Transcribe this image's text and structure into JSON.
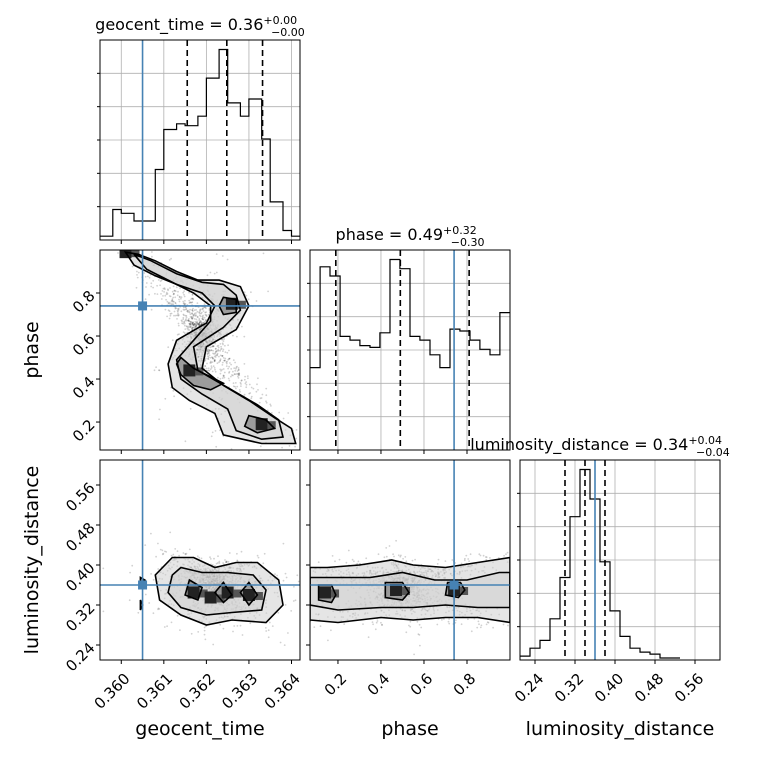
{
  "chart_data": {
    "type": "corner",
    "parameters": [
      "geocent_time",
      "phase",
      "luminosity_distance"
    ],
    "truths": {
      "geocent_time": 0.3605,
      "phase": 0.74,
      "luminosity_distance": 0.36
    },
    "ranges": {
      "geocent_time": [
        0.3595,
        0.3642
      ],
      "phase": [
        0.07,
        1.0
      ],
      "luminosity_distance": [
        0.21,
        0.61
      ]
    },
    "ticks": {
      "geocent_time": [
        0.36,
        0.361,
        0.362,
        0.363,
        0.364
      ],
      "phase": [
        0.2,
        0.4,
        0.6,
        0.8
      ],
      "luminosity_distance": [
        0.24,
        0.32,
        0.4,
        0.48,
        0.56
      ]
    },
    "tick_labels": {
      "geocent_time": [
        "0.360",
        "0.361",
        "0.362",
        "0.363",
        "0.364"
      ],
      "phase": [
        "0.2",
        "0.4",
        "0.6",
        "0.8"
      ],
      "luminosity_distance": [
        "0.24",
        "0.32",
        "0.40",
        "0.48",
        "0.56"
      ]
    },
    "titles": [
      {
        "name": "geocent_time",
        "text": "geocent_time = 0.36",
        "sup": "+0.00",
        "sub": "−0.00"
      },
      {
        "name": "phase",
        "text": "phase = 0.49",
        "sup": "+0.32",
        "sub": "−0.30"
      },
      {
        "name": "luminosity_distance",
        "text": "luminosity_distance = 0.34",
        "sup": "+0.04",
        "sub": "−0.04"
      }
    ],
    "histograms": {
      "geocent_time": {
        "edges": [
          0.3595,
          0.3598,
          0.36,
          0.3603,
          0.3605,
          0.3608,
          0.361,
          0.3613,
          0.3615,
          0.3618,
          0.362,
          0.3623,
          0.3625,
          0.3628,
          0.363,
          0.3633,
          0.3635,
          0.3638,
          0.364,
          0.3642
        ],
        "counts": [
          0.02,
          0.16,
          0.14,
          0.1,
          0.1,
          0.37,
          0.58,
          0.61,
          0.6,
          0.65,
          0.85,
          1.0,
          0.72,
          0.65,
          0.74,
          0.53,
          0.2,
          0.05,
          0.02
        ],
        "quantiles": [
          0.36155,
          0.36248,
          0.36332
        ]
      },
      "phase": {
        "edges": [
          0.07,
          0.117,
          0.163,
          0.21,
          0.256,
          0.302,
          0.349,
          0.395,
          0.442,
          0.488,
          0.535,
          0.581,
          0.628,
          0.674,
          0.721,
          0.767,
          0.814,
          0.86,
          0.907,
          0.953,
          1.0
        ],
        "counts": [
          0.45,
          1.0,
          0.95,
          0.62,
          0.6,
          0.57,
          0.56,
          0.64,
          1.04,
          0.99,
          0.62,
          0.6,
          0.52,
          0.45,
          0.66,
          0.65,
          0.6,
          0.55,
          0.52,
          0.75
        ],
        "quantiles": [
          0.19,
          0.49,
          0.81
        ]
      },
      "luminosity_distance": {
        "edges": [
          0.21,
          0.23,
          0.25,
          0.27,
          0.29,
          0.31,
          0.33,
          0.35,
          0.37,
          0.39,
          0.41,
          0.43,
          0.45,
          0.47,
          0.49,
          0.51,
          0.53
        ],
        "counts": [
          0.02,
          0.06,
          0.1,
          0.21,
          0.42,
          0.73,
          0.97,
          0.82,
          0.5,
          0.25,
          0.12,
          0.06,
          0.04,
          0.03,
          0.01,
          0.01
        ],
        "quantiles": [
          0.3,
          0.34,
          0.38
        ]
      }
    },
    "contours_2d": [
      {
        "x": "geocent_time",
        "y": "phase",
        "levels": [
          [
            [
              0.3601,
              0.99
            ],
            [
              0.3604,
              0.98
            ],
            [
              0.3608,
              0.95
            ],
            [
              0.3613,
              0.9
            ],
            [
              0.3618,
              0.86
            ],
            [
              0.3623,
              0.86
            ],
            [
              0.3628,
              0.83
            ],
            [
              0.363,
              0.74
            ],
            [
              0.3627,
              0.63
            ],
            [
              0.362,
              0.55
            ],
            [
              0.3619,
              0.45
            ],
            [
              0.3624,
              0.37
            ],
            [
              0.363,
              0.3
            ],
            [
              0.3636,
              0.22
            ],
            [
              0.364,
              0.17
            ],
            [
              0.3641,
              0.1
            ],
            [
              0.3633,
              0.1
            ],
            [
              0.3624,
              0.14
            ],
            [
              0.3622,
              0.24
            ],
            [
              0.3616,
              0.3
            ],
            [
              0.3612,
              0.36
            ],
            [
              0.3611,
              0.47
            ],
            [
              0.3613,
              0.58
            ],
            [
              0.362,
              0.66
            ],
            [
              0.3622,
              0.74
            ],
            [
              0.3619,
              0.8
            ],
            [
              0.3613,
              0.84
            ],
            [
              0.3608,
              0.88
            ],
            [
              0.3603,
              0.93
            ],
            [
              0.3601,
              0.99
            ]
          ],
          [
            [
              0.3603,
              0.98
            ],
            [
              0.3607,
              0.95
            ],
            [
              0.3613,
              0.89
            ],
            [
              0.3619,
              0.85
            ],
            [
              0.3624,
              0.84
            ],
            [
              0.3627,
              0.79
            ],
            [
              0.3628,
              0.72
            ],
            [
              0.3624,
              0.64
            ],
            [
              0.3617,
              0.55
            ],
            [
              0.3618,
              0.44
            ],
            [
              0.3625,
              0.36
            ],
            [
              0.3632,
              0.28
            ],
            [
              0.3637,
              0.21
            ],
            [
              0.3638,
              0.13
            ],
            [
              0.3633,
              0.12
            ],
            [
              0.3627,
              0.16
            ],
            [
              0.3625,
              0.26
            ],
            [
              0.3619,
              0.33
            ],
            [
              0.3614,
              0.4
            ],
            [
              0.3613,
              0.49
            ],
            [
              0.3617,
              0.58
            ],
            [
              0.3621,
              0.67
            ],
            [
              0.3621,
              0.74
            ],
            [
              0.3617,
              0.8
            ],
            [
              0.3611,
              0.86
            ],
            [
              0.3606,
              0.91
            ],
            [
              0.3603,
              0.98
            ]
          ],
          [
            [
              0.3614,
              0.5
            ],
            [
              0.3617,
              0.45
            ],
            [
              0.3621,
              0.41
            ],
            [
              0.3624,
              0.38
            ],
            [
              0.3621,
              0.35
            ],
            [
              0.3617,
              0.37
            ],
            [
              0.3614,
              0.42
            ],
            [
              0.3613,
              0.47
            ],
            [
              0.3614,
              0.5
            ]
          ],
          [
            [
              0.3624,
              0.78
            ],
            [
              0.3627,
              0.77
            ],
            [
              0.3627,
              0.71
            ],
            [
              0.3624,
              0.7
            ],
            [
              0.3623,
              0.74
            ],
            [
              0.3624,
              0.78
            ]
          ],
          [
            [
              0.363,
              0.23
            ],
            [
              0.3634,
              0.21
            ],
            [
              0.3636,
              0.17
            ],
            [
              0.3632,
              0.15
            ],
            [
              0.3629,
              0.18
            ],
            [
              0.363,
              0.23
            ]
          ]
        ],
        "dense_points": [
          [
            0.3616,
            0.44
          ],
          [
            0.3626,
            0.75
          ],
          [
            0.3633,
            0.19
          ],
          [
            0.3601,
            0.99
          ]
        ]
      },
      {
        "x": "geocent_time",
        "y": "luminosity_distance",
        "levels": [
          [
            [
              0.3612,
              0.415
            ],
            [
              0.3617,
              0.415
            ],
            [
              0.3622,
              0.395
            ],
            [
              0.3627,
              0.405
            ],
            [
              0.3632,
              0.405
            ],
            [
              0.3637,
              0.37
            ],
            [
              0.3638,
              0.32
            ],
            [
              0.3634,
              0.285
            ],
            [
              0.3626,
              0.29
            ],
            [
              0.362,
              0.28
            ],
            [
              0.3614,
              0.3
            ],
            [
              0.3609,
              0.33
            ],
            [
              0.3608,
              0.38
            ],
            [
              0.3612,
              0.415
            ]
          ],
          [
            [
              0.3614,
              0.395
            ],
            [
              0.3619,
              0.385
            ],
            [
              0.3625,
              0.385
            ],
            [
              0.3631,
              0.38
            ],
            [
              0.3634,
              0.35
            ],
            [
              0.3633,
              0.31
            ],
            [
              0.3626,
              0.305
            ],
            [
              0.362,
              0.3
            ],
            [
              0.3614,
              0.315
            ],
            [
              0.3611,
              0.345
            ],
            [
              0.3612,
              0.38
            ],
            [
              0.3614,
              0.395
            ]
          ],
          [
            [
              0.3616,
              0.37
            ],
            [
              0.3619,
              0.355
            ],
            [
              0.3618,
              0.33
            ],
            [
              0.3615,
              0.34
            ],
            [
              0.3616,
              0.37
            ]
          ],
          [
            [
              0.3624,
              0.365
            ],
            [
              0.3626,
              0.34
            ],
            [
              0.3624,
              0.325
            ],
            [
              0.3622,
              0.345
            ],
            [
              0.3624,
              0.365
            ]
          ],
          [
            [
              0.363,
              0.365
            ],
            [
              0.3632,
              0.34
            ],
            [
              0.363,
              0.32
            ],
            [
              0.3628,
              0.345
            ],
            [
              0.363,
              0.365
            ]
          ],
          [
            [
              0.36045,
              0.375
            ],
            [
              0.36055,
              0.37
            ],
            [
              0.36045,
              0.365
            ],
            [
              0.36045,
              0.375
            ]
          ],
          [
            [
              0.36045,
              0.33
            ],
            [
              0.3605,
              0.32
            ],
            [
              0.36045,
              0.31
            ],
            [
              0.36045,
              0.33
            ]
          ]
        ],
        "dense_points": [
          [
            0.3617,
            0.345
          ],
          [
            0.3621,
            0.335
          ],
          [
            0.3625,
            0.345
          ],
          [
            0.363,
            0.34
          ]
        ]
      },
      {
        "x": "phase",
        "y": "luminosity_distance",
        "levels": [
          [
            [
              0.07,
              0.395
            ],
            [
              0.15,
              0.395
            ],
            [
              0.3,
              0.4
            ],
            [
              0.45,
              0.41
            ],
            [
              0.55,
              0.4
            ],
            [
              0.7,
              0.395
            ],
            [
              0.85,
              0.405
            ],
            [
              1.0,
              0.415
            ],
            [
              1.0,
              0.285
            ],
            [
              0.85,
              0.295
            ],
            [
              0.7,
              0.295
            ],
            [
              0.55,
              0.29
            ],
            [
              0.4,
              0.295
            ],
            [
              0.2,
              0.285
            ],
            [
              0.07,
              0.29
            ],
            [
              0.07,
              0.395
            ]
          ],
          [
            [
              0.07,
              0.375
            ],
            [
              0.2,
              0.375
            ],
            [
              0.35,
              0.375
            ],
            [
              0.5,
              0.385
            ],
            [
              0.65,
              0.37
            ],
            [
              0.8,
              0.37
            ],
            [
              0.95,
              0.385
            ],
            [
              1.0,
              0.385
            ],
            [
              1.0,
              0.315
            ],
            [
              0.85,
              0.315
            ],
            [
              0.7,
              0.32
            ],
            [
              0.55,
              0.315
            ],
            [
              0.4,
              0.315
            ],
            [
              0.2,
              0.31
            ],
            [
              0.07,
              0.32
            ],
            [
              0.07,
              0.375
            ]
          ],
          [
            [
              0.11,
              0.36
            ],
            [
              0.17,
              0.36
            ],
            [
              0.19,
              0.34
            ],
            [
              0.17,
              0.325
            ],
            [
              0.11,
              0.33
            ],
            [
              0.11,
              0.36
            ]
          ],
          [
            [
              0.42,
              0.365
            ],
            [
              0.5,
              0.365
            ],
            [
              0.53,
              0.345
            ],
            [
              0.5,
              0.33
            ],
            [
              0.42,
              0.335
            ],
            [
              0.42,
              0.365
            ]
          ],
          [
            [
              0.71,
              0.365
            ],
            [
              0.77,
              0.365
            ],
            [
              0.79,
              0.35
            ],
            [
              0.76,
              0.335
            ],
            [
              0.7,
              0.34
            ],
            [
              0.71,
              0.365
            ]
          ]
        ],
        "dense_points": [
          [
            0.14,
            0.345
          ],
          [
            0.47,
            0.35
          ],
          [
            0.74,
            0.35
          ]
        ]
      }
    ]
  }
}
